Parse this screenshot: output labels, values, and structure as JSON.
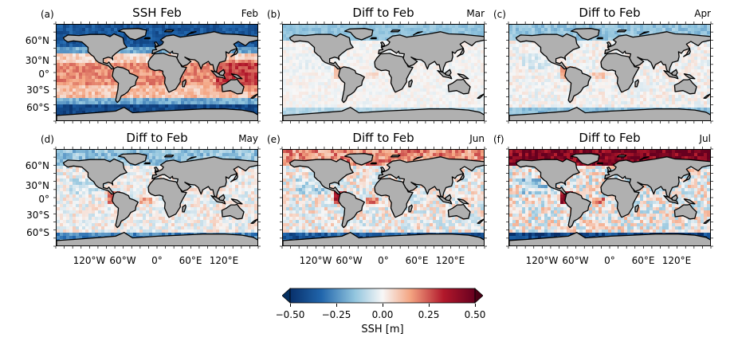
{
  "panels": [
    {
      "label": "(a)",
      "title": "SSH Feb",
      "month": "Feb",
      "mode": "abs"
    },
    {
      "label": "(b)",
      "title": "Diff to Feb",
      "month": "Mar",
      "mode": "diff1"
    },
    {
      "label": "(c)",
      "title": "Diff to Feb",
      "month": "Apr",
      "mode": "diff2"
    },
    {
      "label": "(d)",
      "title": "Diff to Feb",
      "month": "May",
      "mode": "diff3"
    },
    {
      "label": "(e)",
      "title": "Diff to Feb",
      "month": "Jun",
      "mode": "diff4"
    },
    {
      "label": "(f)",
      "title": "Diff to Feb",
      "month": "Jul",
      "mode": "diff5"
    }
  ],
  "lat_labels": [
    "60°N",
    "30°N",
    "0°",
    "30°S",
    "60°S"
  ],
  "lon_labels": [
    "120°W",
    "60°W",
    "0°",
    "60°E",
    "120°E"
  ],
  "colorbar": {
    "ticks": [
      "−0.50",
      "−0.25",
      "0.00",
      "0.25",
      "0.50"
    ],
    "label": "SSH [m]",
    "range": [
      -0.5,
      0.5
    ],
    "colormap": "RdBu_r",
    "colors": [
      "#08306b",
      "#2166ac",
      "#92c5de",
      "#f7f7f7",
      "#f4a582",
      "#b2182b",
      "#67001f"
    ]
  },
  "colors": {
    "land": "#b0b0b0",
    "coast": "#000000"
  }
}
